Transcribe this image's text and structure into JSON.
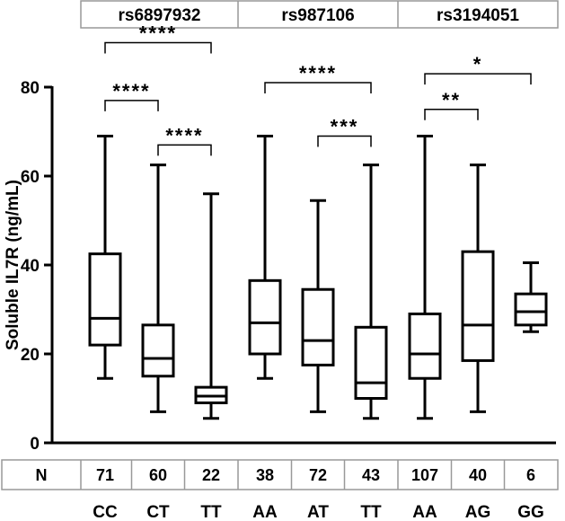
{
  "chart_data": {
    "type": "boxplot",
    "ylabel": "Soluble IL7R  (ng/mL)",
    "ylim": [
      0,
      80
    ],
    "yticks": [
      0,
      20,
      40,
      60,
      80
    ],
    "grid": false,
    "n_label": "N",
    "groups": [
      {
        "name": "rs6897932",
        "categories": [
          "CC",
          "CT",
          "TT"
        ]
      },
      {
        "name": "rs987106",
        "categories": [
          "AA",
          "AT",
          "TT"
        ]
      },
      {
        "name": "rs3194051",
        "categories": [
          "AA",
          "AG",
          "GG"
        ]
      }
    ],
    "boxes": [
      {
        "category": "CC",
        "n": "71",
        "min": 14.5,
        "q1": 22,
        "median": 28,
        "q3": 42.5,
        "max": 69
      },
      {
        "category": "CT",
        "n": "60",
        "min": 7,
        "q1": 15,
        "median": 19,
        "q3": 26.5,
        "max": 62.5
      },
      {
        "category": "TT",
        "n": "22",
        "min": 5.5,
        "q1": 9,
        "median": 10.5,
        "q3": 12.5,
        "max": 56
      },
      {
        "category": "AA",
        "n": "38",
        "min": 14.5,
        "q1": 20,
        "median": 27,
        "q3": 36.5,
        "max": 69
      },
      {
        "category": "AT",
        "n": "72",
        "min": 7,
        "q1": 17.5,
        "median": 23,
        "q3": 34.5,
        "max": 54.5
      },
      {
        "category": "TT",
        "n": "43",
        "min": 5.5,
        "q1": 10,
        "median": 13.5,
        "q3": 26,
        "max": 62.5
      },
      {
        "category": "AA",
        "n": "107",
        "min": 5.5,
        "q1": 14.5,
        "median": 20,
        "q3": 29,
        "max": 69
      },
      {
        "category": "AG",
        "n": "40",
        "min": 7,
        "q1": 18.5,
        "median": 26.5,
        "q3": 43,
        "max": 62.5
      },
      {
        "category": "GG",
        "n": "6",
        "min": 25,
        "q1": 26.5,
        "median": 29.5,
        "q3": 33.5,
        "max": 40.5
      }
    ],
    "significance": [
      {
        "from": 0,
        "to": 2,
        "label": "****",
        "level": 90
      },
      {
        "from": 0,
        "to": 1,
        "label": "****",
        "level": 77
      },
      {
        "from": 1,
        "to": 2,
        "label": "****",
        "level": 67
      },
      {
        "from": 3,
        "to": 5,
        "label": "****",
        "level": 81
      },
      {
        "from": 4,
        "to": 5,
        "label": "***",
        "level": 69
      },
      {
        "from": 6,
        "to": 8,
        "label": "*",
        "level": 83
      },
      {
        "from": 6,
        "to": 7,
        "label": "**",
        "level": 75
      }
    ]
  }
}
